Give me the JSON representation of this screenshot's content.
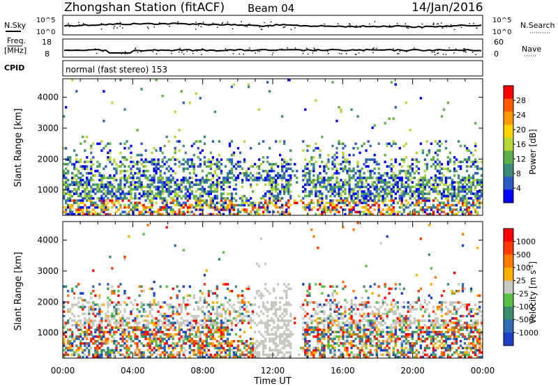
{
  "header": {
    "station": "Zhongshan Station (fitACF)",
    "beam": "Beam 04",
    "date": "14/Jan/2016"
  },
  "panels": {
    "nsky_label": "N.Sky",
    "nsky_ticks": [
      "10^5",
      "10^0"
    ],
    "nsearch_label": "N.Search",
    "nsearch_ticks": [
      "10^5",
      "10^0"
    ],
    "freq_label": "Freq.",
    "freq_unit": "[MHz]",
    "freq_ticks": [
      "18",
      "8"
    ],
    "nave_label": "Nave",
    "nave_ticks": [
      "60",
      "0"
    ],
    "cpid_label": "CPID",
    "cpid_text": "normal (fast stereo) 153"
  },
  "chart_data": [
    {
      "type": "heatmap",
      "name": "power",
      "ylabel": "Slant Range [km]",
      "xlabel": "",
      "yticks": [
        "4000",
        "3000",
        "2000",
        "1000"
      ],
      "ylim": [
        180,
        4600
      ],
      "colorbar_label": "Power [dB]",
      "colorbar_ticks": [
        "28",
        "24",
        "20",
        "16",
        "12",
        "8",
        "4"
      ],
      "colors": [
        "#0000ff",
        "#2a5cc4",
        "#3b8a7a",
        "#5fb04a",
        "#b7d63a",
        "#ffd200",
        "#ff9a00",
        "#ff5a00",
        "#ff0000"
      ]
    },
    {
      "type": "heatmap",
      "name": "velocity",
      "ylabel": "Slant Range [km]",
      "xlabel": "Time UT",
      "yticks": [
        "4000",
        "3000",
        "2000",
        "1000"
      ],
      "xticks": [
        "00:00",
        "04:00",
        "08:00",
        "12:00",
        "16:00",
        "20:00",
        "00:00"
      ],
      "ylim": [
        180,
        4600
      ],
      "colorbar_label": "Velocity [m s",
      "colorbar_label_sup": "-1",
      "colorbar_label_end": "]",
      "colorbar_ticks": [
        "1000",
        "500",
        "100",
        "25",
        "-25",
        "-100",
        "-500",
        "-1000"
      ],
      "colors": [
        "#1c3fc4",
        "#2f6db4",
        "#3d8f6a",
        "#55c043",
        "#c8c8c0",
        "#ffb000",
        "#ff7a00",
        "#ff3a00",
        "#ff0000"
      ]
    }
  ]
}
